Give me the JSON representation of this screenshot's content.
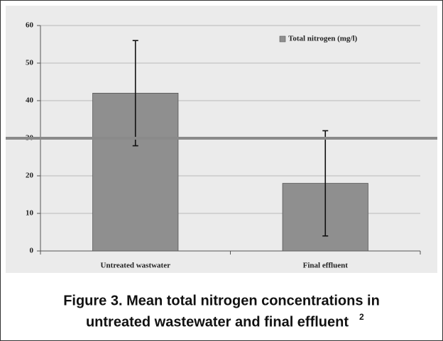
{
  "chart_data": {
    "type": "bar",
    "categories": [
      "Untreated wastwater",
      "Final effluent"
    ],
    "series": [
      {
        "name": "Total nitrogen (mg/l)",
        "color": "#8f8f8f",
        "values": [
          42,
          18
        ],
        "errors": [
          14,
          14
        ]
      }
    ],
    "ylim": [
      0,
      60
    ],
    "yticks": [
      0,
      10,
      20,
      30,
      40,
      50,
      60
    ],
    "grid": true,
    "reference_line": 30,
    "reference_color": "#8a8a8a",
    "legend": "top-right",
    "caption": [
      "Figure 3. Mean total nitrogen concentrations in",
      "untreated wastewater and final effluent"
    ],
    "caption_superscript": "2"
  }
}
